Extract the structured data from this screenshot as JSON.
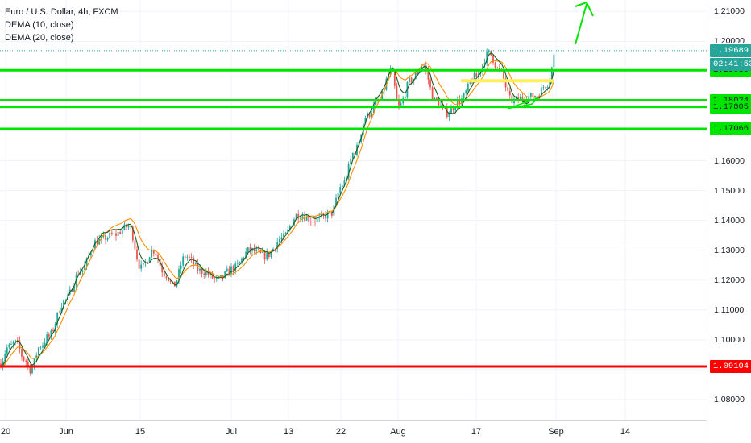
{
  "legend": {
    "title": "Euro / U.S. Dollar, 4h, FXCM",
    "ind1": "DEMA (10, close)",
    "ind2": "DEMA (20, close)"
  },
  "colors": {
    "up": "#26a69a",
    "down": "#ef5350",
    "dema10": "#1b5e20",
    "dema20": "#ff8c00",
    "support": "#00e600",
    "red_line": "#ff0000",
    "yellow": "#ffee58",
    "arrow": "#00e600"
  },
  "chart_data": {
    "type": "line",
    "series": [
      {
        "x": [
          0,
          10,
          20,
          30,
          38,
          50,
          60,
          80,
          100,
          120,
          140,
          160,
          175,
          190,
          205,
          215,
          230,
          250,
          270,
          290,
          310,
          330,
          350,
          370,
          390,
          410,
          425,
          440,
          455,
          470,
          485,
          495,
          510,
          525,
          540,
          555,
          570,
          590,
          607,
          620,
          635,
          650,
          665,
          680,
          690
        ],
        "values": [
          1.092,
          1.0975,
          1.099,
          1.0935,
          1.09,
          1.098,
          1.101,
          1.113,
          1.123,
          1.133,
          1.135,
          1.138,
          1.124,
          1.13,
          1.122,
          1.118,
          1.128,
          1.123,
          1.12,
          1.124,
          1.13,
          1.128,
          1.134,
          1.142,
          1.14,
          1.142,
          1.152,
          1.163,
          1.175,
          1.18,
          1.19,
          1.178,
          1.187,
          1.192,
          1.18,
          1.176,
          1.18,
          1.188,
          1.196,
          1.19,
          1.18,
          1.181,
          1.182,
          1.186,
          1.1969
        ]
      }
    ],
    "yticks": [
      "1.21000",
      "1.20000",
      "1.19000",
      "1.18000",
      "1.17000",
      "1.16000",
      "1.15000",
      "1.14000",
      "1.13000",
      "1.12000",
      "1.11000",
      "1.10000",
      "1.09000",
      "1.08000"
    ],
    "xticks": [
      "20",
      "Jun",
      "15",
      "Jul",
      "13",
      "22",
      "Aug",
      "17",
      "Sep",
      "14"
    ],
    "ylim": [
      1.0735,
      1.2125
    ],
    "levels": [
      {
        "price": 1.1903,
        "label": "1.19030",
        "kind": "support"
      },
      {
        "price": 1.18024,
        "label": "1.18024",
        "kind": "support"
      },
      {
        "price": 1.17805,
        "label": "1.17805",
        "kind": "support"
      },
      {
        "price": 1.17066,
        "label": "1.17066",
        "kind": "support"
      },
      {
        "price": 1.09104,
        "label": "1.09104",
        "kind": "resistance"
      }
    ],
    "last_price": "1.19689",
    "countdown": "02:41:53"
  }
}
